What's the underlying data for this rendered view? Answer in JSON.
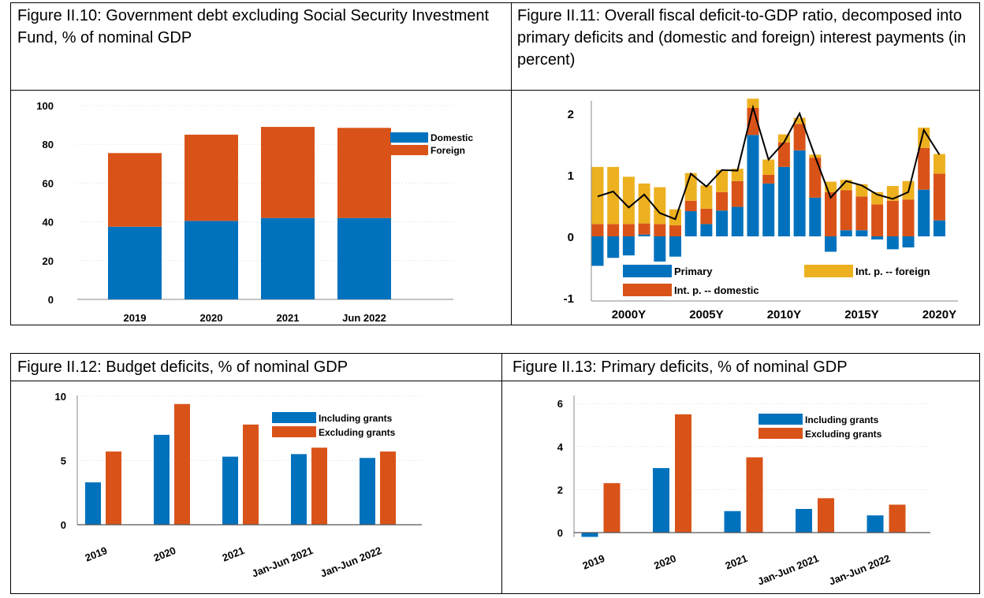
{
  "colors": {
    "blue": "#0072BD",
    "orange": "#D95319",
    "yellow": "#EDB120",
    "line": "#000000",
    "grid": "#d9d9d9"
  },
  "fig10": {
    "title": "Figure II.10: Government debt excluding Social Security Investment Fund, % of nominal GDP",
    "chart_data": {
      "type": "bar",
      "stacked": true,
      "categories": [
        "2019",
        "2020",
        "2021",
        "Jun 2022"
      ],
      "series": [
        {
          "name": "Domestic",
          "values": [
            37.5,
            40.5,
            42,
            42
          ]
        },
        {
          "name": "Foreign",
          "values": [
            38,
            44.5,
            47,
            46.5
          ]
        }
      ],
      "ylim": [
        0,
        100
      ],
      "yticks": [
        "0",
        "20",
        "40",
        "60",
        "80",
        "100"
      ],
      "grid": true,
      "legend": "top-right"
    }
  },
  "fig11": {
    "title": "Figure II.11: Overall fiscal deficit-to-GDP ratio, decomposed into primary deficits and (domestic and foreign) interest payments (in percent)",
    "chart_data": {
      "type": "bar",
      "stacked": true,
      "x": [
        1998,
        1999,
        2000,
        2001,
        2002,
        2003,
        2004,
        2005,
        2006,
        2007,
        2008,
        2009,
        2010,
        2011,
        2012,
        2013,
        2014,
        2015,
        2016,
        2017,
        2018,
        2019,
        2020,
        2021
      ],
      "xticks": [
        "2000Y",
        "2005Y",
        "2010Y",
        "2015Y",
        "2020Y"
      ],
      "series": [
        {
          "name": "Primary",
          "values": [
            -0.48,
            -0.35,
            -0.31,
            0.03,
            -0.41,
            -0.33,
            0.41,
            0.2,
            0.42,
            0.48,
            1.65,
            0.86,
            1.13,
            1.4,
            0.63,
            -0.25,
            0.1,
            0.1,
            -0.05,
            -0.21,
            -0.18,
            0.76,
            0.26,
            0
          ]
        },
        {
          "name": "Int. p. -- domestic",
          "values": [
            0.2,
            0.2,
            0.2,
            0.18,
            0.2,
            0.18,
            0.17,
            0.25,
            0.3,
            0.42,
            0.44,
            0.14,
            0.4,
            0.43,
            0.65,
            0.72,
            0.65,
            0.55,
            0.52,
            0.58,
            0.6,
            0.68,
            0.76,
            0
          ]
        },
        {
          "name": "Int. p. -- foreign",
          "values": [
            0.93,
            0.93,
            0.77,
            0.65,
            0.6,
            0.26,
            0.45,
            0.38,
            0.36,
            0.2,
            0.15,
            0.25,
            0.13,
            0.1,
            0.05,
            0.17,
            0.17,
            0.2,
            0.2,
            0.24,
            0.3,
            0.33,
            0.32,
            0
          ]
        }
      ],
      "line": {
        "name": "Overall",
        "values": [
          0.65,
          0.73,
          0.47,
          0.68,
          0.38,
          0.28,
          1.02,
          0.81,
          1.08,
          1.07,
          2.1,
          1.25,
          1.53,
          2.0,
          1.3,
          0.63,
          0.9,
          0.83,
          0.68,
          0.61,
          0.72,
          1.73,
          1.33,
          0
        ]
      },
      "ylim": [
        -1,
        2.2
      ],
      "yticks": [
        "-1",
        "0",
        "1",
        "2"
      ],
      "legend": "bottom"
    }
  },
  "fig12": {
    "title": "Figure II.12: Budget deficits, % of nominal GDP",
    "chart_data": {
      "type": "bar",
      "categories": [
        "2019",
        "2020",
        "2021",
        "Jan-Jun 2021",
        "Jan-Jun 2022"
      ],
      "series": [
        {
          "name": "Including grants",
          "values": [
            3.3,
            7.0,
            5.3,
            5.5,
            5.2
          ]
        },
        {
          "name": "Excluding grants",
          "values": [
            5.7,
            9.4,
            7.8,
            6.0,
            5.7
          ]
        }
      ],
      "ylim": [
        0,
        10
      ],
      "yticks": [
        "0",
        "5",
        "10"
      ],
      "legend": "top-right"
    }
  },
  "fig13": {
    "title": "Figure II.13: Primary deficits, % of nominal GDP",
    "chart_data": {
      "type": "bar",
      "categories": [
        "2019",
        "2020",
        "2021",
        "Jan-Jun 2021",
        "Jan-Jun 2022"
      ],
      "series": [
        {
          "name": "Including grants",
          "values": [
            -0.2,
            3.0,
            1.0,
            1.1,
            0.8
          ]
        },
        {
          "name": "Excluding grants",
          "values": [
            2.3,
            5.5,
            3.5,
            1.6,
            1.3
          ]
        }
      ],
      "ylim": [
        -0.2,
        6
      ],
      "yticks": [
        "0",
        "2",
        "4",
        "6"
      ],
      "legend": "top-right"
    }
  }
}
